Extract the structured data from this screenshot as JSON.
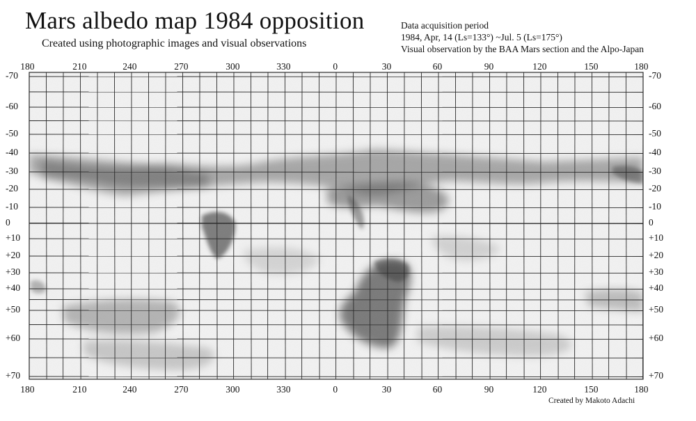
{
  "title": "Mars albedo map 1984  opposition",
  "subtitle": "Created using photographic images and visual observations",
  "info": {
    "line1": "Data acquisition period",
    "line2": "1984, Apr, 14 (Ls=133°) ~Jul. 5 (Ls=175°)",
    "line3": "Visual observation by the BAA Mars section and the Alpo-Japan"
  },
  "credit": "Created by Makoto Adachi",
  "longitude_labels": [
    "180",
    "210",
    "240",
    "270",
    "300",
    "330",
    "0",
    "30",
    "60",
    "90",
    "120",
    "150",
    "180"
  ],
  "latitude_labels_left": [
    "-70",
    "-60",
    "-50",
    "-40",
    "-30",
    "-20",
    "-10",
    "0",
    "+10",
    "+20",
    "+30",
    "+40",
    "+50",
    "+60",
    "+70"
  ],
  "latitude_labels_right": [
    "-70",
    "-60",
    "-50",
    "-40",
    "-30",
    "-20",
    "-10",
    "0",
    "+10",
    "+20",
    "+30",
    "+40",
    "+50",
    "+60",
    "+70"
  ],
  "colors": {
    "paper": "#f7f7f7",
    "grid": "#2a2a2a",
    "dark_shading": "#555555"
  }
}
